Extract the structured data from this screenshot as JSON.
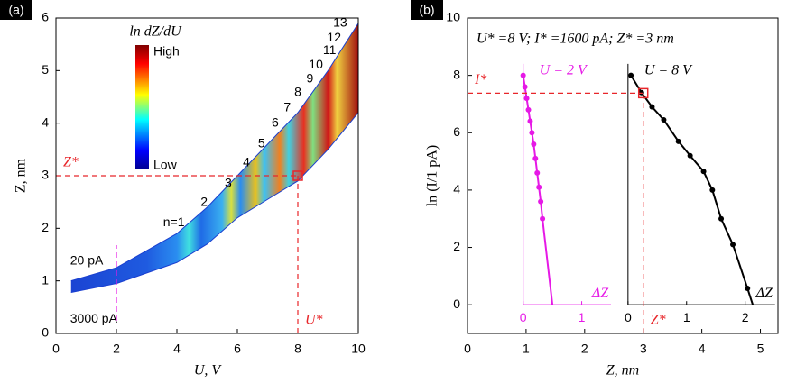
{
  "chart_data": [
    {
      "type": "band",
      "label": "(a)",
      "xlabel": "U, V",
      "ylabel": "Z, nm",
      "xlim": [
        0,
        10
      ],
      "xticks": [
        0,
        2,
        4,
        6,
        8,
        10
      ],
      "ylim": [
        0,
        6
      ],
      "yticks": [
        0,
        1,
        2,
        3,
        4,
        5,
        6
      ],
      "x": [
        0.5,
        2,
        4,
        5,
        6,
        7,
        8,
        9,
        10
      ],
      "series": [
        {
          "name": "20 pA",
          "values": [
            1.0,
            1.25,
            1.9,
            2.4,
            3.0,
            3.6,
            4.2,
            5.0,
            5.9
          ]
        },
        {
          "name": "3000 pA",
          "values": [
            0.78,
            0.95,
            1.35,
            1.7,
            2.2,
            2.55,
            2.9,
            3.5,
            4.2
          ]
        }
      ],
      "annotations": [
        "n=1",
        "2",
        "3",
        "4",
        "5",
        "6",
        "7",
        "8",
        "9",
        "10",
        "11",
        "12",
        "13"
      ],
      "colorbar": {
        "title": "ln dZ/dU",
        "high": "High",
        "low": "Low"
      },
      "xref": [
        {
          "value": 8,
          "label": "U*",
          "color": "#e8262a"
        },
        {
          "value": 2,
          "color": "#e619e6"
        }
      ],
      "yref": [
        {
          "value": 3,
          "label": "Z*",
          "color": "#e8262a"
        }
      ]
    },
    {
      "type": "line",
      "label": "(b)",
      "title": "U* =8 V; I* =1600 pA; Z* =3 nm",
      "xlabel": "Z, nm",
      "ylabel": "ln (I/1 pA)",
      "xlim": [
        0,
        5.3
      ],
      "xticks": [
        0,
        1,
        2,
        3,
        4,
        5
      ],
      "ylim": [
        -1,
        10
      ],
      "yticks": [
        0,
        2,
        4,
        6,
        8,
        10
      ],
      "series": [
        {
          "name": "U = 2 V",
          "color": "#e619e6",
          "x": [
            0.95,
            0.98,
            1.01,
            1.04,
            1.07,
            1.1,
            1.13,
            1.16,
            1.19,
            1.22,
            1.25,
            1.28,
            1.45
          ],
          "values": [
            8,
            7.6,
            7.2,
            6.8,
            6.4,
            6.0,
            5.6,
            5.1,
            4.6,
            4.1,
            3.6,
            3.0,
            0
          ],
          "inset": {
            "origin": 0.95,
            "ticks": [
              0,
              1
            ],
            "end": 2.45,
            "top": 8.4,
            "label": "ΔZ"
          }
        },
        {
          "name": "U = 8 V",
          "color": "#000000",
          "x": [
            2.79,
            2.97,
            3.15,
            3.35,
            3.6,
            3.8,
            4.03,
            4.18,
            4.33,
            4.53,
            4.78,
            4.87
          ],
          "values": [
            8.0,
            7.4,
            6.9,
            6.45,
            5.7,
            5.2,
            4.65,
            4.0,
            3.0,
            2.1,
            0.57,
            0
          ],
          "inset": {
            "origin": 2.74,
            "ticks": [
              0,
              1,
              2
            ],
            "end": 5.25,
            "top": 8.4,
            "label": "ΔZ"
          }
        }
      ],
      "xref": [
        {
          "value": 3,
          "label": "Z*",
          "color": "#e8262a"
        }
      ],
      "yref": [
        {
          "value": 7.38,
          "label": "I*",
          "color": "#e8262a"
        }
      ]
    }
  ]
}
